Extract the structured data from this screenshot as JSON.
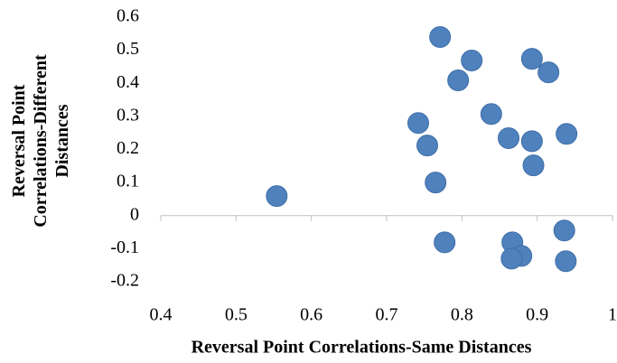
{
  "chart_data": {
    "type": "scatter",
    "xlabel": "Reversal Point Correlations-Same Distances",
    "ylabel": "Reversal Point Correlations-Different Distances",
    "x": [
      0.554,
      0.771,
      0.813,
      0.795,
      0.893,
      0.915,
      0.839,
      0.742,
      0.754,
      0.862,
      0.893,
      0.939,
      0.895,
      0.765,
      0.777,
      0.867,
      0.879,
      0.866,
      0.936,
      0.938
    ],
    "values": [
      0.059,
      0.54,
      0.469,
      0.409,
      0.474,
      0.433,
      0.307,
      0.28,
      0.212,
      0.234,
      0.225,
      0.247,
      0.152,
      0.1,
      -0.081,
      -0.081,
      -0.122,
      -0.13,
      -0.045,
      -0.138
    ],
    "color": "#4f81bd",
    "xlim": [
      0.4,
      1
    ],
    "xticks": [
      0.4,
      0.5,
      0.6,
      0.7,
      0.8,
      0.9,
      1
    ],
    "ylim": [
      -0.2,
      0.6
    ],
    "yticks": [
      -0.2,
      -0.1,
      0,
      0.1,
      0.2,
      0.3,
      0.4,
      0.5,
      0.6
    ],
    "grid": false
  }
}
